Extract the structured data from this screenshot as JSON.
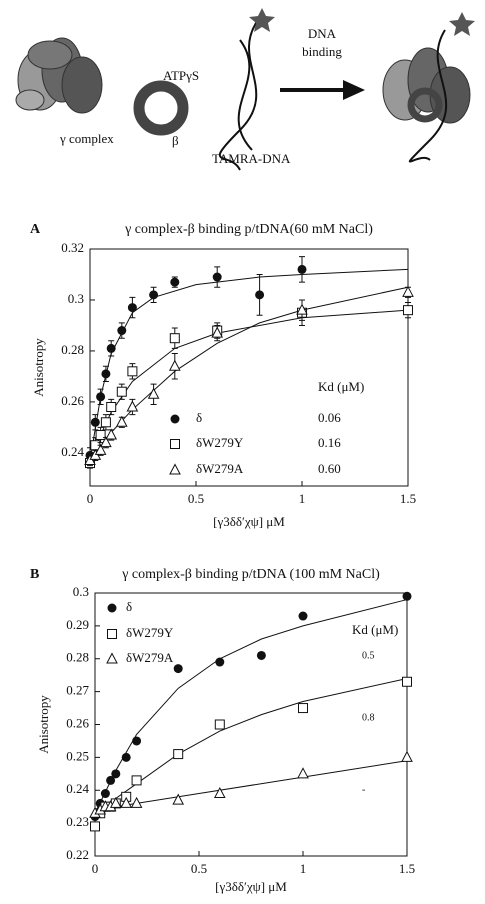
{
  "diagram": {
    "labels": {
      "atp": "ATPγS",
      "dna_binding": [
        "DNA",
        "binding"
      ],
      "gamma_complex": "γ complex",
      "beta": "β",
      "tamra": "TAMRA-DNA"
    }
  },
  "chart_data": [
    {
      "type": "scatter",
      "panel": "A",
      "title": "γ complex-β binding p/tDNA(60 mM NaCl)",
      "x_label": "[γ3δδ′χψ] μM",
      "y_label": "Anisotropy",
      "xlim": [
        0,
        1.5
      ],
      "xticks": [
        0,
        0.5,
        1,
        1.5
      ],
      "ylim": [
        0.227,
        0.32
      ],
      "yticks": [
        0.24,
        0.26,
        0.28,
        0.3,
        0.32
      ],
      "kd_title": "Kd (μM)",
      "series": [
        {
          "name": "δ",
          "marker": "circle",
          "color": "#111111",
          "kd": "0.06",
          "x": [
            0,
            0.025,
            0.05,
            0.075,
            0.1,
            0.15,
            0.2,
            0.3,
            0.4,
            0.6,
            0.8,
            1.0
          ],
          "values": [
            0.239,
            0.252,
            0.262,
            0.271,
            0.281,
            0.288,
            0.297,
            0.302,
            0.307,
            0.309,
            0.302,
            0.312
          ],
          "errors": [
            0.003,
            0.003,
            0.003,
            0.003,
            0.003,
            0.003,
            0.004,
            0.003,
            0.002,
            0.004,
            0.008,
            0.005
          ],
          "fit": {
            "x": [
              0,
              0.05,
              0.1,
              0.2,
              0.3,
              0.5,
              0.8,
              1.0,
              1.5
            ],
            "values": [
              0.237,
              0.262,
              0.279,
              0.295,
              0.301,
              0.306,
              0.309,
              0.31,
              0.312
            ]
          }
        },
        {
          "name": "δW279Y",
          "marker": "square",
          "color": "#111111",
          "kd": "0.16",
          "x": [
            0,
            0.025,
            0.05,
            0.075,
            0.1,
            0.15,
            0.2,
            0.4,
            0.6,
            1.0,
            1.5
          ],
          "values": [
            0.236,
            0.243,
            0.247,
            0.252,
            0.258,
            0.264,
            0.272,
            0.285,
            0.288,
            0.295,
            0.296
          ],
          "errors": [
            0.002,
            0.003,
            0.003,
            0.003,
            0.003,
            0.003,
            0.003,
            0.004,
            0.003,
            0.005,
            0.003
          ],
          "fit": {
            "x": [
              0,
              0.05,
              0.1,
              0.2,
              0.4,
              0.6,
              1.0,
              1.5
            ],
            "values": [
              0.236,
              0.247,
              0.256,
              0.268,
              0.281,
              0.287,
              0.293,
              0.296
            ]
          }
        },
        {
          "name": "δW279A",
          "marker": "triangle",
          "color": "#111111",
          "kd": "0.60",
          "x": [
            0,
            0.025,
            0.05,
            0.075,
            0.1,
            0.15,
            0.2,
            0.3,
            0.4,
            0.6,
            1.0,
            1.5
          ],
          "values": [
            0.237,
            0.239,
            0.241,
            0.244,
            0.247,
            0.252,
            0.258,
            0.263,
            0.274,
            0.287,
            0.296,
            0.303
          ],
          "errors": [
            0.002,
            0.002,
            0.002,
            0.002,
            0.002,
            0.002,
            0.003,
            0.004,
            0.005,
            0.003,
            0.004,
            0.002
          ],
          "fit": {
            "x": [
              0,
              0.1,
              0.2,
              0.4,
              0.6,
              0.8,
              1.0,
              1.5
            ],
            "values": [
              0.237,
              0.248,
              0.257,
              0.272,
              0.283,
              0.291,
              0.296,
              0.305
            ]
          }
        }
      ]
    },
    {
      "type": "scatter",
      "panel": "B",
      "title": "γ complex-β binding p/tDNA (100 mM NaCl)",
      "x_label": "[γ3δδ′χψ] μM",
      "y_label": "Anisotropy",
      "xlim": [
        0,
        1.5
      ],
      "xticks": [
        0,
        0.5,
        1,
        1.5
      ],
      "ylim": [
        0.22,
        0.3
      ],
      "yticks": [
        0.22,
        0.23,
        0.24,
        0.25,
        0.26,
        0.27,
        0.28,
        0.29,
        0.3
      ],
      "kd_title": "Kd (μM)",
      "series": [
        {
          "name": "δ",
          "marker": "circle",
          "color": "#111111",
          "kd": "0.5",
          "x": [
            0,
            0.025,
            0.05,
            0.075,
            0.1,
            0.15,
            0.2,
            0.4,
            0.6,
            0.8,
            1.0,
            1.5
          ],
          "values": [
            0.232,
            0.236,
            0.239,
            0.243,
            0.245,
            0.25,
            0.255,
            0.277,
            0.279,
            0.281,
            0.293,
            0.299
          ],
          "fit": {
            "x": [
              0,
              0.1,
              0.2,
              0.4,
              0.6,
              0.8,
              1.0,
              1.5
            ],
            "values": [
              0.233,
              0.246,
              0.257,
              0.271,
              0.28,
              0.286,
              0.29,
              0.298
            ]
          }
        },
        {
          "name": "δW279Y",
          "marker": "square",
          "color": "#111111",
          "kd": "0.8",
          "x": [
            0,
            0.025,
            0.05,
            0.075,
            0.1,
            0.15,
            0.2,
            0.4,
            0.6,
            1.0,
            1.5
          ],
          "values": [
            0.229,
            0.233,
            0.235,
            0.235,
            0.236,
            0.238,
            0.243,
            0.251,
            0.26,
            0.265,
            0.273
          ],
          "fit": {
            "x": [
              0,
              0.2,
              0.4,
              0.6,
              0.8,
              1.0,
              1.5
            ],
            "values": [
              0.233,
              0.242,
              0.251,
              0.258,
              0.263,
              0.267,
              0.274
            ]
          }
        },
        {
          "name": "δW279A",
          "marker": "triangle",
          "color": "#111111",
          "kd": "-",
          "x": [
            0,
            0.025,
            0.05,
            0.075,
            0.1,
            0.15,
            0.2,
            0.4,
            0.6,
            1.0,
            1.5
          ],
          "values": [
            0.233,
            0.234,
            0.235,
            0.235,
            0.236,
            0.236,
            0.236,
            0.237,
            0.239,
            0.245,
            0.25
          ],
          "fit": {
            "x": [
              0,
              0.5,
              1.0,
              1.5
            ],
            "values": [
              0.234,
              0.239,
              0.244,
              0.249
            ]
          }
        }
      ]
    }
  ]
}
